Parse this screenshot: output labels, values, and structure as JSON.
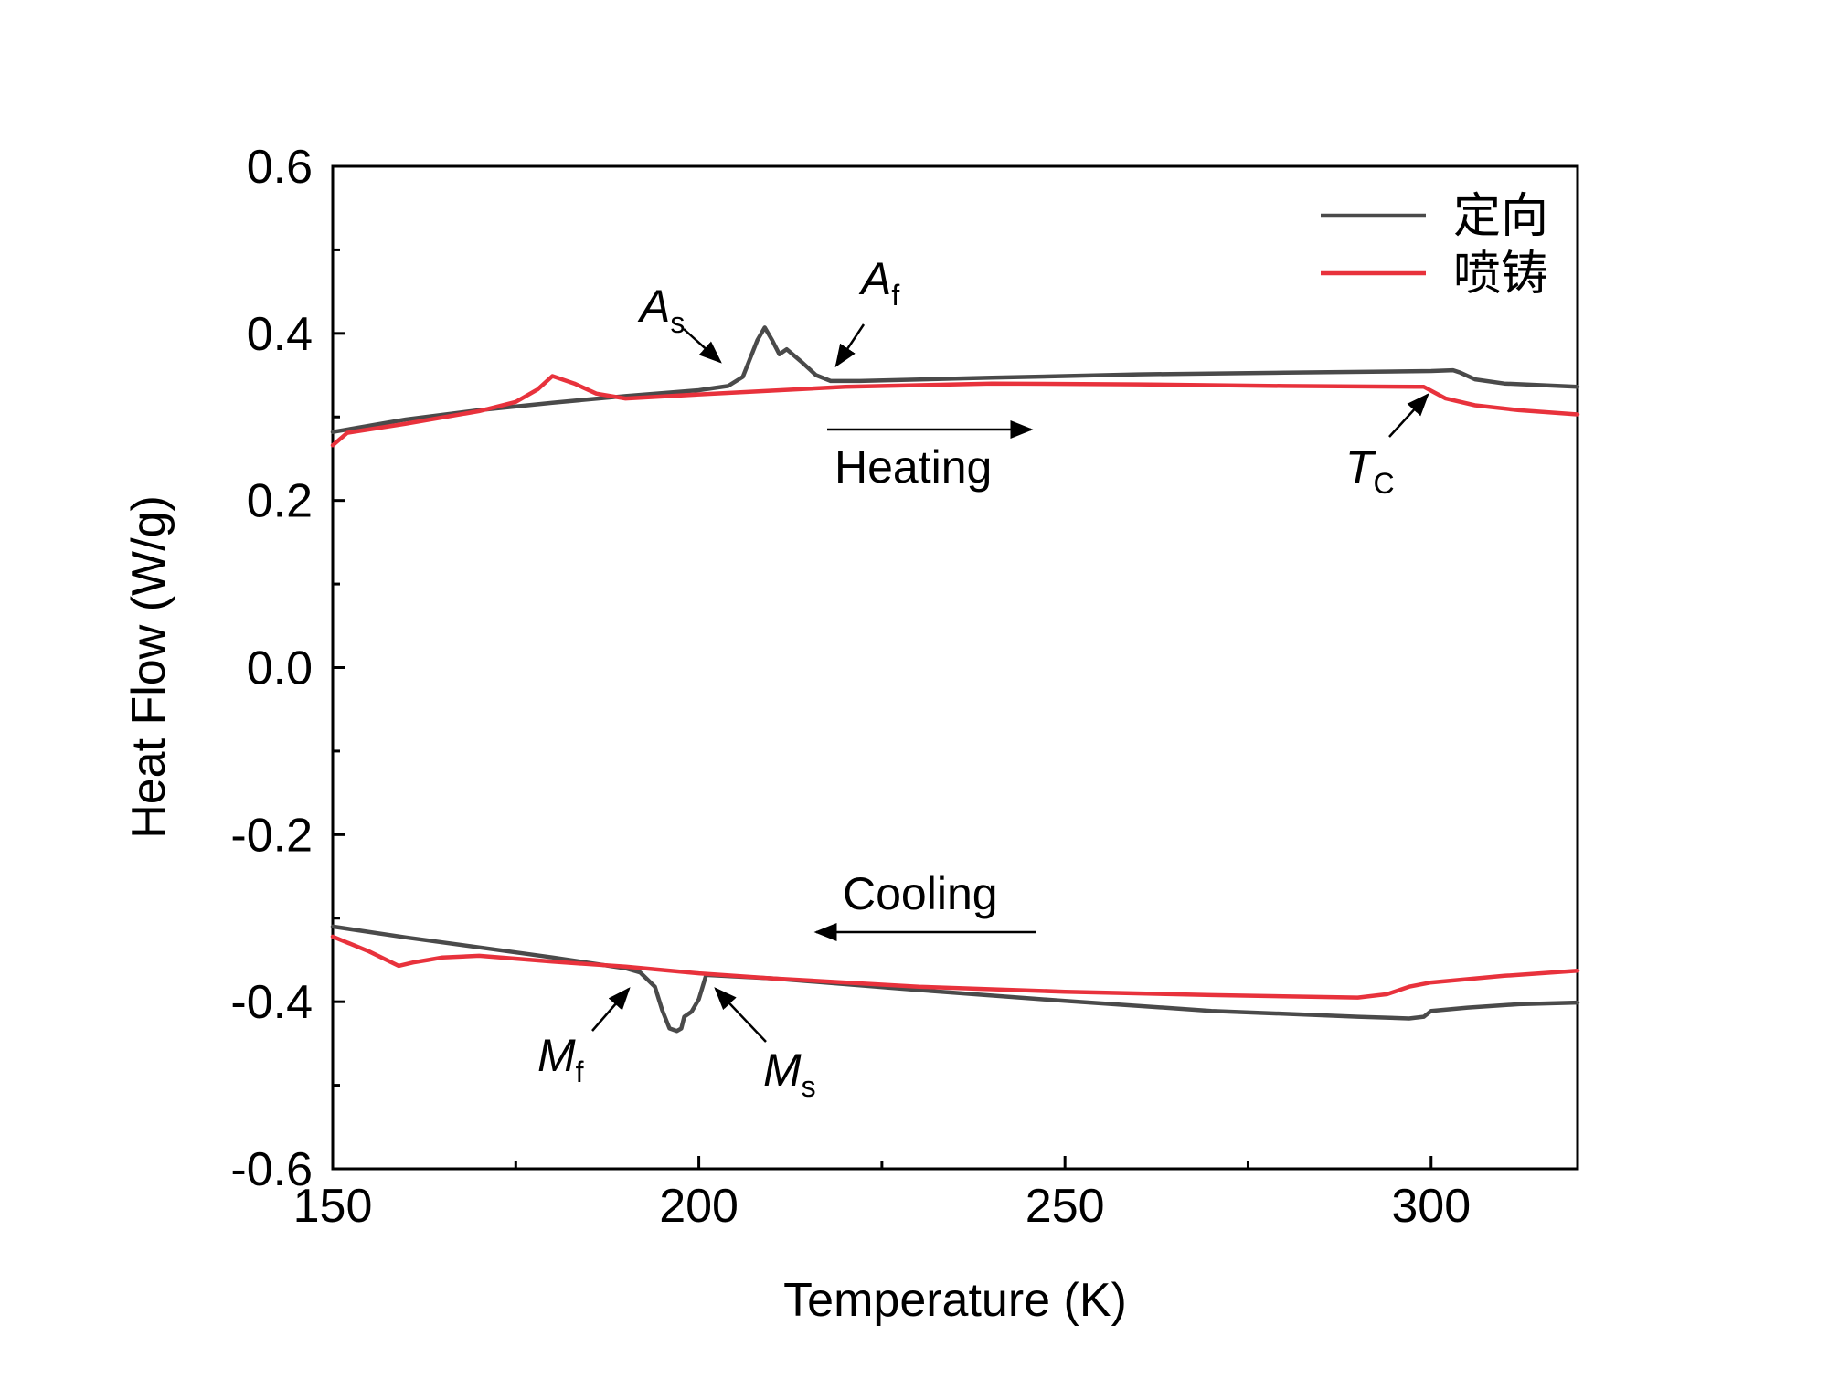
{
  "chart_data": {
    "type": "line",
    "xlabel": "Temperature (K)",
    "ylabel": "Heat Flow (W/g)",
    "xlim": [
      150,
      320
    ],
    "ylim": [
      -0.6,
      0.6
    ],
    "xticks": [
      150,
      200,
      250,
      300
    ],
    "xtick_labels": [
      "150",
      "200",
      "250",
      "300"
    ],
    "yticks": [
      -0.6,
      -0.4,
      -0.2,
      0.0,
      0.2,
      0.4,
      0.6
    ],
    "ytick_labels": [
      "-0.6",
      "-0.4",
      "-0.2",
      "0.0",
      "0.2",
      "0.4",
      "0.6"
    ],
    "legend_position": "top-right",
    "colors": {
      "dingxiang": "#4a4a4a",
      "penzhu": "#e8323c",
      "axis": "#000000"
    },
    "series": [
      {
        "name": "定向",
        "key": "dingxiang",
        "segment": "heating",
        "x": [
          150,
          160,
          170,
          180,
          190,
          200,
          204,
          206,
          208,
          209,
          210,
          211,
          212,
          214,
          216,
          218,
          222,
          240,
          260,
          280,
          300,
          303,
          304,
          306,
          310,
          320
        ],
        "y": [
          0.282,
          0.297,
          0.308,
          0.317,
          0.325,
          0.332,
          0.337,
          0.348,
          0.392,
          0.407,
          0.392,
          0.375,
          0.381,
          0.366,
          0.35,
          0.343,
          0.343,
          0.347,
          0.351,
          0.353,
          0.355,
          0.356,
          0.353,
          0.345,
          0.34,
          0.336
        ]
      },
      {
        "name": "喷铸",
        "key": "penzhu",
        "segment": "heating",
        "x": [
          150,
          152,
          160,
          170,
          175,
          178,
          180,
          183,
          186,
          190,
          200,
          220,
          240,
          260,
          280,
          298,
          299,
          302,
          306,
          312,
          320
        ],
        "y": [
          0.266,
          0.281,
          0.292,
          0.307,
          0.318,
          0.333,
          0.349,
          0.34,
          0.328,
          0.322,
          0.327,
          0.336,
          0.34,
          0.339,
          0.337,
          0.336,
          0.336,
          0.322,
          0.314,
          0.308,
          0.303
        ]
      },
      {
        "name": "定向",
        "key": "dingxiang",
        "segment": "cooling",
        "x": [
          150,
          160,
          170,
          180,
          190,
          192,
          194,
          195,
          196,
          197,
          197.6,
          198,
          199,
          200,
          201,
          210,
          230,
          250,
          270,
          290,
          297,
          299,
          300,
          305,
          312,
          320
        ],
        "y": [
          -0.31,
          -0.323,
          -0.335,
          -0.347,
          -0.36,
          -0.365,
          -0.382,
          -0.41,
          -0.432,
          -0.435,
          -0.432,
          -0.418,
          -0.412,
          -0.397,
          -0.368,
          -0.372,
          -0.386,
          -0.399,
          -0.411,
          -0.418,
          -0.42,
          -0.418,
          -0.411,
          -0.407,
          -0.403,
          -0.401
        ]
      },
      {
        "name": "喷铸",
        "key": "penzhu",
        "segment": "cooling",
        "x": [
          150,
          155,
          159,
          161,
          163,
          165,
          170,
          180,
          190,
          200,
          210,
          230,
          250,
          270,
          290,
          294,
          297,
          300,
          310,
          320
        ],
        "y": [
          -0.322,
          -0.34,
          -0.357,
          -0.353,
          -0.35,
          -0.347,
          -0.345,
          -0.352,
          -0.358,
          -0.366,
          -0.372,
          -0.382,
          -0.388,
          -0.392,
          -0.395,
          -0.391,
          -0.382,
          -0.377,
          -0.369,
          -0.363
        ]
      }
    ],
    "annotations": [
      {
        "key": "As",
        "label": "A",
        "sub": "s"
      },
      {
        "key": "Af",
        "label": "A",
        "sub": "f"
      },
      {
        "key": "Tc",
        "label": "T",
        "sub": "C"
      },
      {
        "key": "Mf",
        "label": "M",
        "sub": "f"
      },
      {
        "key": "Ms",
        "label": "M",
        "sub": "s"
      },
      {
        "key": "heating",
        "label": "Heating"
      },
      {
        "key": "cooling",
        "label": "Cooling"
      }
    ]
  }
}
